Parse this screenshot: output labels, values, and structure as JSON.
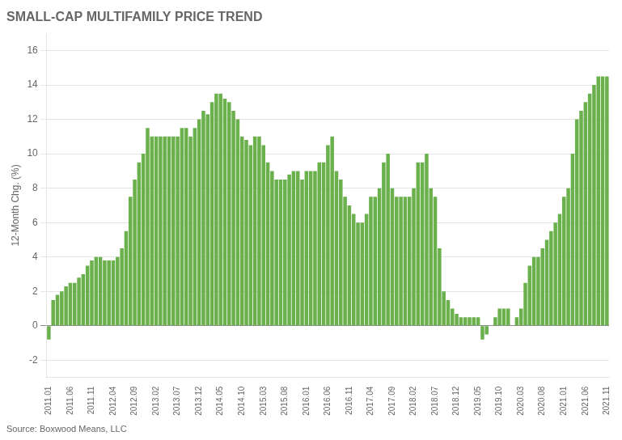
{
  "chart_data": {
    "type": "bar",
    "title": "SMALL-CAP MULTIFAMILY PRICE TREND",
    "y_label": "12-Month Chg. (%)",
    "source": "Source: Boxwood Means, LLC",
    "color": "#6ab04c",
    "grid": true,
    "ylim": [
      -3,
      17
    ],
    "yticks": [
      -2,
      0,
      2,
      4,
      6,
      8,
      10,
      12,
      14,
      16
    ],
    "categories": [
      "2011.01",
      null,
      null,
      null,
      null,
      "2011.06",
      null,
      null,
      null,
      null,
      "2011.11",
      null,
      null,
      null,
      null,
      "2012.04",
      null,
      null,
      null,
      null,
      "2012.09",
      null,
      null,
      null,
      null,
      "2013.02",
      null,
      null,
      null,
      null,
      "2013.07",
      null,
      null,
      null,
      null,
      "2013.12",
      null,
      null,
      null,
      null,
      "2014.05",
      null,
      null,
      null,
      null,
      "2014.10",
      null,
      null,
      null,
      null,
      "2015.03",
      null,
      null,
      null,
      null,
      "2015.08",
      null,
      null,
      null,
      null,
      "2016.01",
      null,
      null,
      null,
      null,
      "2016.06",
      null,
      null,
      null,
      null,
      "2016.11",
      null,
      null,
      null,
      null,
      "2017.04",
      null,
      null,
      null,
      null,
      "2017.09",
      null,
      null,
      null,
      null,
      "2018.02",
      null,
      null,
      null,
      null,
      "2018.07",
      null,
      null,
      null,
      null,
      "2018.12",
      null,
      null,
      null,
      null,
      "2019.05",
      null,
      null,
      null,
      null,
      "2019.10",
      null,
      null,
      null,
      null,
      "2020.03",
      null,
      null,
      null,
      null,
      "2020.08",
      null,
      null,
      null,
      null,
      "2021.01",
      null,
      null,
      null,
      null,
      "2021.06",
      null,
      null,
      null,
      null,
      "2021.11"
    ],
    "values": [
      -0.8,
      1.5,
      1.8,
      2.0,
      2.3,
      2.5,
      2.5,
      2.8,
      3.0,
      3.5,
      3.8,
      4.0,
      4.0,
      3.8,
      3.8,
      3.8,
      4.0,
      4.5,
      5.5,
      7.5,
      8.5,
      9.5,
      10.0,
      11.5,
      11.0,
      11.0,
      11.0,
      11.0,
      11.0,
      11.0,
      11.0,
      11.5,
      11.5,
      11.0,
      11.5,
      12.0,
      12.5,
      12.3,
      13.0,
      13.5,
      13.5,
      13.2,
      13.0,
      12.5,
      12.0,
      11.0,
      10.8,
      10.5,
      11.0,
      11.0,
      10.5,
      9.5,
      9.0,
      8.5,
      8.5,
      8.5,
      8.8,
      9.0,
      9.0,
      8.5,
      9.0,
      9.0,
      9.0,
      9.5,
      9.5,
      10.5,
      11.0,
      9.0,
      8.5,
      7.5,
      7.0,
      6.5,
      6.0,
      6.0,
      6.5,
      7.5,
      7.5,
      8.0,
      9.5,
      10.0,
      8.0,
      7.5,
      7.5,
      7.5,
      7.5,
      8.0,
      9.5,
      9.5,
      10.0,
      8.0,
      7.5,
      4.5,
      2.0,
      1.5,
      1.0,
      0.7,
      0.5,
      0.5,
      0.5,
      0.5,
      0.5,
      -0.8,
      -0.5,
      0.0,
      0.5,
      1.0,
      1.0,
      1.0,
      0.0,
      0.5,
      1.0,
      2.5,
      3.5,
      4.0,
      4.0,
      4.5,
      5.0,
      5.5,
      6.0,
      6.5,
      7.5,
      8.0,
      10.0,
      12.0,
      12.5,
      13.0,
      13.5,
      14.0,
      14.5,
      14.5,
      14.5
    ]
  }
}
